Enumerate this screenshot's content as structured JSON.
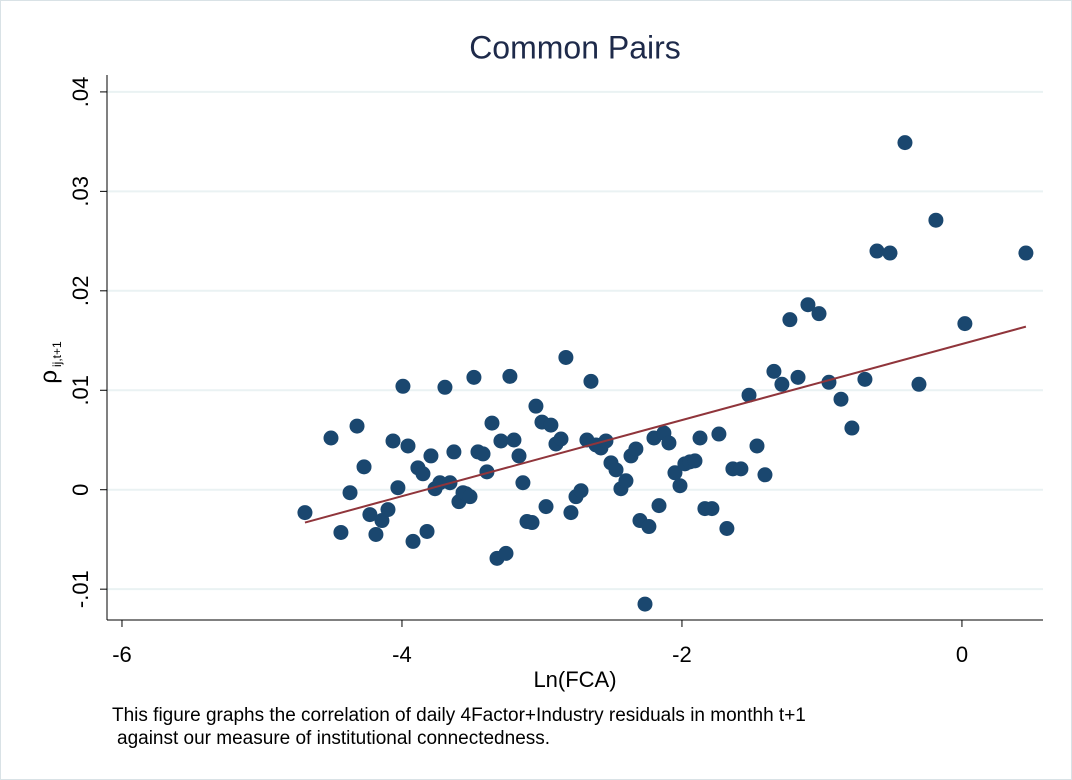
{
  "chart_data": {
    "type": "scatter",
    "title": "Common Pairs",
    "x_label": "Ln(FCA)",
    "y_label": "ρ",
    "y_label_subscript": "ij,t+1",
    "caption": [
      "This figure graphs the correlation of daily 4Factor+Industry residuals in monthh t+1",
      "against our measure of institutional connectedness."
    ],
    "x": [
      -4.693,
      -4.507,
      -4.436,
      -4.371,
      -4.321,
      -4.271,
      -4.229,
      -4.186,
      -4.143,
      -4.1,
      -4.064,
      -4.029,
      -3.993,
      -3.957,
      -3.921,
      -3.886,
      -3.85,
      -3.821,
      -3.793,
      -3.764,
      -3.729,
      -3.693,
      -3.657,
      -3.629,
      -3.593,
      -3.564,
      -3.543,
      -3.514,
      -3.486,
      -3.457,
      -3.421,
      -3.393,
      -3.357,
      -3.321,
      -3.293,
      -3.257,
      -3.229,
      -3.2,
      -3.164,
      -3.136,
      -3.107,
      -3.071,
      -3.043,
      -3.0,
      -2.971,
      -2.936,
      -2.9,
      -2.864,
      -2.829,
      -2.793,
      -2.757,
      -2.721,
      -2.679,
      -2.65,
      -2.614,
      -2.579,
      -2.543,
      -2.507,
      -2.471,
      -2.436,
      -2.4,
      -2.364,
      -2.329,
      -2.3,
      -2.264,
      -2.236,
      -2.2,
      -2.164,
      -2.129,
      -2.093,
      -2.05,
      -2.014,
      -1.979,
      -1.943,
      -1.907,
      -1.871,
      -1.836,
      -1.786,
      -1.736,
      -1.679,
      -1.636,
      -1.579,
      -1.521,
      -1.464,
      -1.407,
      -1.343,
      -1.286,
      -1.229,
      -1.171,
      -1.1,
      -1.021,
      -0.95,
      -0.864,
      -0.786,
      -0.693,
      -0.607,
      -0.514,
      -0.407,
      -0.307,
      -0.186,
      0.021,
      0.457
    ],
    "values": [
      -0.0023,
      0.0052,
      -0.0043,
      -0.0003,
      0.0064,
      0.0023,
      -0.0025,
      -0.0045,
      -0.0031,
      -0.002,
      0.0049,
      0.0002,
      0.0104,
      0.0044,
      -0.0052,
      0.0022,
      0.0016,
      -0.0042,
      0.0034,
      0.0001,
      0.0007,
      0.0103,
      0.0007,
      0.0038,
      -0.0012,
      -0.0003,
      -0.0004,
      -0.0007,
      0.0113,
      0.0038,
      0.0036,
      0.0018,
      0.0067,
      -0.0069,
      0.0049,
      -0.0064,
      0.0114,
      0.005,
      0.0034,
      0.0007,
      -0.0032,
      -0.0033,
      0.0084,
      0.0068,
      -0.0017,
      0.0065,
      0.0046,
      0.0051,
      0.0133,
      -0.0023,
      -0.0007,
      -0.0001,
      0.005,
      0.0109,
      0.0045,
      0.0042,
      0.0049,
      0.0027,
      0.002,
      0.0001,
      0.0009,
      0.0034,
      0.0041,
      -0.0031,
      -0.0115,
      -0.0037,
      0.0052,
      -0.0016,
      0.0057,
      0.0047,
      0.0017,
      0.0004,
      0.0026,
      0.0028,
      0.0029,
      0.0052,
      -0.0019,
      -0.0019,
      0.0056,
      -0.0039,
      0.0021,
      0.0021,
      0.0095,
      0.0044,
      0.0015,
      0.0119,
      0.0106,
      0.0171,
      0.0113,
      0.0186,
      0.0177,
      0.0108,
      0.0091,
      0.0062,
      0.0111,
      0.024,
      0.0238,
      0.0349,
      0.0106,
      0.0271,
      0.0167,
      0.0238
    ],
    "color": "#1a476f",
    "fit_line": {
      "x": [
        -4.693,
        0.457
      ],
      "y": [
        -0.0033,
        0.0164
      ],
      "color": "#90353b"
    },
    "xlim": [
      -6.107,
      0.579
    ],
    "xticks": [
      -6,
      -4,
      -2,
      0
    ],
    "ylim": [
      -0.0131,
      0.0417
    ],
    "yticks": [
      {
        "value": -0.01,
        "label": "-.01"
      },
      0,
      {
        "value": 0.01,
        "label": ".01"
      },
      {
        "value": 0.02,
        "label": ".02"
      },
      {
        "value": 0.03,
        "label": ".03"
      },
      {
        "value": 0.04,
        "label": ".04"
      }
    ],
    "grid": true
  }
}
